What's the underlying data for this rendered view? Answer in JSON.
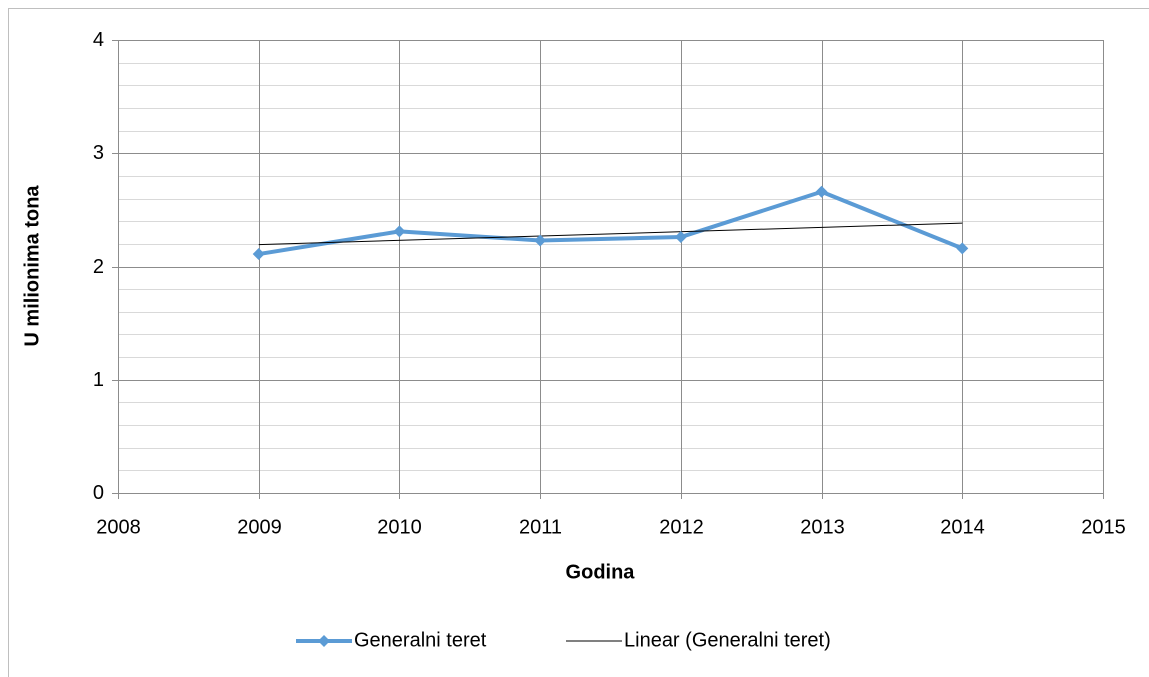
{
  "chart_data": {
    "type": "line",
    "x_label": "Godina",
    "y_label": "U milionima tona",
    "x": [
      2009,
      2010,
      2011,
      2012,
      2013,
      2014
    ],
    "series": [
      {
        "name": "Generalni teret",
        "color": "#5b9bd5",
        "values": [
          2.11,
          2.31,
          2.23,
          2.26,
          2.66,
          2.16
        ]
      }
    ],
    "trendline": {
      "name": "Linear (Generalni teret)",
      "color": "#000000",
      "kind": "linear"
    },
    "xlim": [
      2008,
      2015
    ],
    "xticks": [
      2008,
      2009,
      2010,
      2011,
      2012,
      2013,
      2014,
      2015
    ],
    "ylim": [
      0,
      4
    ],
    "yticks": [
      0,
      1,
      2,
      3,
      4
    ],
    "yminorticks": [
      0.2,
      0.4,
      0.6,
      0.8,
      1.2,
      1.4,
      1.6,
      1.8,
      2.2,
      2.4,
      2.6,
      2.8,
      3.2,
      3.4,
      3.6,
      3.8
    ],
    "grid": true,
    "legend": "bottom"
  }
}
